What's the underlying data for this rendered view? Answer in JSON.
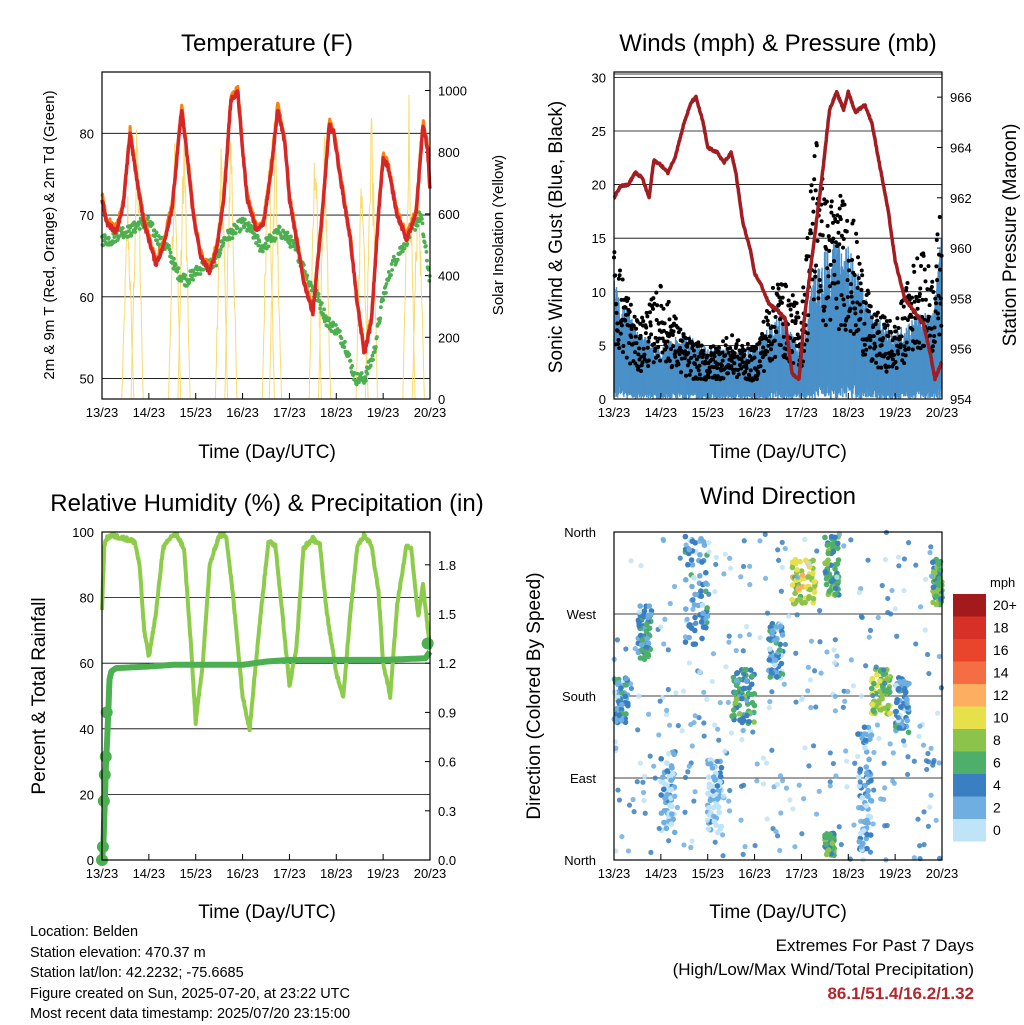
{
  "panels": {
    "temperature": {
      "title": "Temperature (F)",
      "ylabel_left": "2m & 9m T (Red, Orange) & 2m Td (Green)",
      "ylabel_right": "Solar Insolation (Yellow)",
      "xlabel": "Time (Day/UTC)"
    },
    "winds": {
      "title": "Winds (mph) & Pressure (mb)",
      "ylabel_left": "Sonic Wind & Gust (Blue, Black)",
      "ylabel_right": "Station Pressure (Maroon)",
      "xlabel": "Time (Day/UTC)"
    },
    "humidity": {
      "title": "Relative Humidity (%) & Precipitation (in)",
      "ylabel_left": "Percent & Total Rainfall",
      "xlabel": "Time (Day/UTC)"
    },
    "direction": {
      "title": "Wind Direction",
      "ylabel_left": "Direction (Colored By Speed)",
      "xlabel": "Time (Day/UTC)",
      "colorbar_unit": "mph"
    }
  },
  "station": {
    "location": "Location: Belden",
    "elevation": "Station elevation: 470.37 m",
    "latlon": "Station lat/lon: 42.2232; -75.6685",
    "created": "Figure created on Sun, 2025-07-20, at 23:22 UTC",
    "latest": "Most recent data timestamp: 2025/07/20 23:15:00"
  },
  "extremes": {
    "heading": "Extremes For Past 7 Days",
    "subheading": "(High/Low/Max Wind/Total Precipitation)",
    "values": "86.1/51.4/16.2/1.32"
  },
  "colors": {
    "temp_2m": "#d62728",
    "temp_9m": "#ff7f0e",
    "dewpoint": "#4caf50",
    "solar": "#f7dc6f",
    "wind": "#4a90c8",
    "gust": "#000000",
    "pressure": "#a11d21",
    "rh": "#8ccc4a",
    "precip": "#4caf50"
  },
  "chart_data": [
    {
      "type": "line",
      "title": "Temperature (F)",
      "xlabel": "Time (Day/UTC)",
      "ylabel": "2m & 9m T (Red, Orange) & 2m Td (Green)",
      "ylabel_right": "Solar Insolation (Yellow)",
      "x_ticks": [
        "13/23",
        "14/23",
        "15/23",
        "16/23",
        "17/23",
        "18/23",
        "19/23",
        "20/23"
      ],
      "x_range_days": [
        0,
        7
      ],
      "ylim": [
        47.5,
        87.5
      ],
      "y_ticks": [
        50,
        60,
        70,
        80
      ],
      "ylim_right": [
        0,
        1060
      ],
      "y_ticks_right": [
        0,
        200,
        400,
        600,
        800,
        1000
      ],
      "grid": true,
      "series": [
        {
          "name": "2m T",
          "color": "#d62728",
          "x": [
            0,
            0.1,
            0.3,
            0.45,
            0.6,
            0.75,
            0.9,
            1.0,
            1.15,
            1.3,
            1.5,
            1.7,
            1.82,
            1.95,
            2.1,
            2.3,
            2.45,
            2.6,
            2.75,
            2.9,
            3.0,
            3.1,
            3.3,
            3.45,
            3.6,
            3.75,
            3.9,
            4.0,
            4.15,
            4.3,
            4.5,
            4.7,
            4.85,
            4.95,
            5.1,
            5.3,
            5.45,
            5.6,
            5.75,
            5.9,
            6.0,
            6.1,
            6.3,
            6.5,
            6.7,
            6.85,
            6.95,
            7.0
          ],
          "y": [
            72,
            69,
            68,
            71,
            80,
            74,
            69,
            67,
            64,
            66,
            71,
            83,
            77,
            70,
            65,
            63,
            66,
            72,
            84,
            85,
            78,
            72,
            68,
            69,
            75,
            83,
            79,
            72,
            67,
            62,
            58,
            70,
            81,
            80,
            74,
            67,
            59,
            53,
            57,
            70,
            77,
            76,
            70,
            67,
            70,
            81,
            78,
            73
          ]
        },
        {
          "name": "Dewpoint",
          "color": "#4caf50",
          "x": [
            0,
            0.2,
            0.4,
            0.6,
            0.8,
            1.0,
            1.2,
            1.4,
            1.6,
            1.8,
            2.0,
            2.2,
            2.4,
            2.6,
            2.8,
            3.0,
            3.2,
            3.4,
            3.6,
            3.8,
            4.0,
            4.2,
            4.4,
            4.6,
            4.8,
            5.0,
            5.2,
            5.4,
            5.6,
            5.8,
            6.0,
            6.2,
            6.4,
            6.6,
            6.8,
            7.0
          ],
          "y": [
            67,
            67,
            68,
            68,
            69,
            69,
            67,
            66,
            63,
            62,
            63,
            64,
            64,
            67,
            68,
            69,
            68,
            66,
            67,
            68,
            67,
            65,
            62,
            60,
            57,
            56,
            54,
            50,
            50,
            53,
            60,
            64,
            66,
            68,
            70,
            62
          ]
        },
        {
          "name": "Solar Insolation",
          "color": "#f7dc6f",
          "axis": "right",
          "peak_x": [
            0.55,
            0.75,
            1.55,
            1.75,
            2.55,
            2.75,
            3.55,
            3.7,
            4.55,
            4.75,
            5.55,
            5.75,
            6.55,
            6.75
          ],
          "peak_y": [
            700,
            960,
            920,
            980,
            940,
            1000,
            1000,
            950,
            950,
            920,
            880,
            1050,
            1030,
            840
          ]
        }
      ]
    },
    {
      "type": "line",
      "title": "Winds (mph) & Pressure (mb)",
      "xlabel": "Time (Day/UTC)",
      "ylabel": "Sonic Wind & Gust (Blue, Black)",
      "ylabel_right": "Station Pressure (Maroon)",
      "x_ticks": [
        "13/23",
        "14/23",
        "15/23",
        "16/23",
        "17/23",
        "18/23",
        "19/23",
        "20/23"
      ],
      "x_range_days": [
        0,
        7
      ],
      "ylim": [
        0,
        30.5
      ],
      "y_ticks": [
        0,
        5,
        10,
        15,
        20,
        25,
        30
      ],
      "ylim_right": [
        954,
        967
      ],
      "y_ticks_right": [
        954,
        956,
        958,
        960,
        962,
        964,
        966
      ],
      "grid": true,
      "series": [
        {
          "name": "Station Pressure",
          "color": "#a11d21",
          "axis": "right",
          "x": [
            0,
            0.15,
            0.3,
            0.45,
            0.6,
            0.75,
            0.85,
            1.0,
            1.15,
            1.3,
            1.5,
            1.65,
            1.75,
            1.9,
            2.0,
            2.2,
            2.35,
            2.5,
            2.6,
            2.75,
            2.9,
            3.0,
            3.15,
            3.3,
            3.5,
            3.65,
            3.8,
            3.95,
            4.05,
            4.25,
            4.45,
            4.6,
            4.75,
            4.9,
            5.0,
            5.15,
            5.35,
            5.5,
            5.7,
            5.85,
            6.0,
            6.2,
            6.4,
            6.6,
            6.75,
            6.85,
            7.0
          ],
          "y": [
            962,
            962.5,
            962.5,
            963,
            962.8,
            962,
            963.5,
            963.3,
            963,
            963.6,
            965,
            965.8,
            966,
            965,
            964,
            963.8,
            963.4,
            963.8,
            963,
            961,
            960,
            959,
            958.5,
            957.8,
            957.5,
            957.2,
            955,
            954.8,
            957,
            960,
            963,
            965.5,
            966.2,
            965.5,
            966.2,
            965.4,
            965.7,
            965,
            963,
            961.5,
            959.5,
            958,
            957.5,
            957,
            955.8,
            954.8,
            955.5
          ]
        },
        {
          "name": "Sonic Wind",
          "color": "#4a90c8",
          "x": [
            0,
            0.5,
            1.0,
            1.5,
            2.0,
            2.5,
            3.0,
            3.5,
            4.0,
            4.3,
            4.5,
            5.0,
            5.5,
            6.0,
            6.5,
            6.8,
            7.0
          ],
          "y": [
            6,
            3,
            2,
            3,
            2,
            2,
            2,
            4,
            2,
            7,
            8,
            8,
            4,
            3,
            4,
            4,
            9
          ]
        },
        {
          "name": "Gust",
          "color": "#000000",
          "x": [
            0,
            0.5,
            1.0,
            1.5,
            2.0,
            2.5,
            3.0,
            3.5,
            4.0,
            4.3,
            4.5,
            5.0,
            5.5,
            6.0,
            6.5,
            6.8,
            7.0
          ],
          "y": [
            12,
            6,
            9,
            5,
            4,
            5,
            4,
            10,
            7,
            22,
            16,
            16,
            7,
            6,
            12,
            10,
            16
          ]
        }
      ]
    },
    {
      "type": "line",
      "title": "Relative Humidity (%) & Precipitation (in)",
      "xlabel": "Time (Day/UTC)",
      "ylabel": "Percent & Total Rainfall",
      "x_ticks": [
        "13/23",
        "14/23",
        "15/23",
        "16/23",
        "17/23",
        "18/23",
        "19/23",
        "20/23"
      ],
      "x_range_days": [
        0,
        7
      ],
      "ylim": [
        0,
        100
      ],
      "y_ticks": [
        0,
        20,
        40,
        60,
        80,
        100
      ],
      "ylim_right": [
        0,
        2.0
      ],
      "y_ticks_right": [
        0.0,
        0.3,
        0.6,
        0.9,
        1.2,
        1.5,
        1.8
      ],
      "grid": true,
      "series": [
        {
          "name": "RH",
          "color": "#8ccc4a",
          "x": [
            0,
            0.05,
            0.1,
            0.2,
            0.5,
            0.7,
            0.8,
            0.9,
            1.0,
            1.15,
            1.3,
            1.5,
            1.6,
            1.75,
            1.9,
            2.0,
            2.15,
            2.3,
            2.5,
            2.65,
            2.8,
            3.0,
            3.15,
            3.35,
            3.55,
            3.7,
            3.85,
            4.0,
            4.15,
            4.3,
            4.5,
            4.65,
            4.8,
            5.0,
            5.15,
            5.3,
            5.45,
            5.6,
            5.75,
            5.9,
            6.0,
            6.15,
            6.3,
            6.5,
            6.6,
            6.75,
            6.85,
            7.0
          ],
          "y": [
            76,
            96,
            98,
            99,
            98,
            97,
            90,
            70,
            62,
            75,
            95,
            99,
            99,
            95,
            65,
            42,
            60,
            90,
            99,
            99,
            80,
            50,
            40,
            70,
            97,
            96,
            75,
            53,
            65,
            95,
            98,
            96,
            75,
            57,
            50,
            75,
            96,
            99,
            96,
            82,
            60,
            50,
            78,
            96,
            95,
            74,
            84,
            64
          ]
        },
        {
          "name": "Precipitation",
          "color": "#4caf50",
          "axis": "right",
          "x": [
            0,
            0.03,
            0.06,
            0.08,
            0.12,
            0.16,
            0.2,
            0.3,
            1.0,
            1.5,
            2.0,
            3.0,
            3.5,
            4.0,
            5.0,
            6.0,
            6.9,
            7.0
          ],
          "y": [
            0.0,
            0.1,
            0.35,
            0.55,
            0.8,
            1.1,
            1.15,
            1.17,
            1.18,
            1.19,
            1.19,
            1.19,
            1.21,
            1.22,
            1.22,
            1.22,
            1.23,
            1.27
          ]
        }
      ]
    },
    {
      "type": "scatter",
      "title": "Wind Direction",
      "xlabel": "Time (Day/UTC)",
      "ylabel": "Direction (Colored By Speed)",
      "x_ticks": [
        "13/23",
        "14/23",
        "15/23",
        "16/23",
        "17/23",
        "18/23",
        "19/23",
        "20/23"
      ],
      "x_range_days": [
        0,
        7
      ],
      "y_ticks": [
        "North",
        "East",
        "South",
        "West",
        "North"
      ],
      "ylim_degrees": [
        0,
        360
      ],
      "grid": true,
      "colorbar": {
        "unit": "mph",
        "labels": [
          "20+",
          "18",
          "16",
          "14",
          "12",
          "10",
          "8",
          "6",
          "4",
          "2",
          "0"
        ],
        "colors": [
          "#a3191c",
          "#d73027",
          "#e8452a",
          "#f46d43",
          "#fdae61",
          "#e6e04a",
          "#8cc34a",
          "#4daf6a",
          "#3a7fc1",
          "#6eaee0",
          "#bfe3f7"
        ]
      },
      "clusters": [
        {
          "x": [
            0,
            0.3
          ],
          "dir": [
            150,
            200
          ],
          "speed": 3
        },
        {
          "x": [
            0.5,
            0.8
          ],
          "dir": [
            220,
            280
          ],
          "speed": 4
        },
        {
          "x": [
            1.0,
            1.3
          ],
          "dir": [
            30,
            120
          ],
          "speed": 1
        },
        {
          "x": [
            1.5,
            2.0
          ],
          "dir": [
            230,
            355
          ],
          "speed": 3
        },
        {
          "x": [
            2.0,
            2.3
          ],
          "dir": [
            30,
            110
          ],
          "speed": 1
        },
        {
          "x": [
            2.5,
            3.0
          ],
          "dir": [
            150,
            210
          ],
          "speed": 5
        },
        {
          "x": [
            3.3,
            3.6
          ],
          "dir": [
            200,
            260
          ],
          "speed": 3
        },
        {
          "x": [
            3.8,
            4.3
          ],
          "dir": [
            280,
            330
          ],
          "speed": 9
        },
        {
          "x": [
            4.5,
            4.8
          ],
          "dir": [
            290,
            355
          ],
          "speed": 6
        },
        {
          "x": [
            4.5,
            4.7
          ],
          "dir": [
            5,
            30
          ],
          "speed": 6
        },
        {
          "x": [
            5.5,
            5.9
          ],
          "dir": [
            160,
            210
          ],
          "speed": 8
        },
        {
          "x": [
            5.2,
            5.5
          ],
          "dir": [
            10,
            150
          ],
          "speed": 2
        },
        {
          "x": [
            6.0,
            6.3
          ],
          "dir": [
            140,
            200
          ],
          "speed": 3
        },
        {
          "x": [
            6.8,
            7.0
          ],
          "dir": [
            280,
            330
          ],
          "speed": 6
        }
      ]
    }
  ]
}
